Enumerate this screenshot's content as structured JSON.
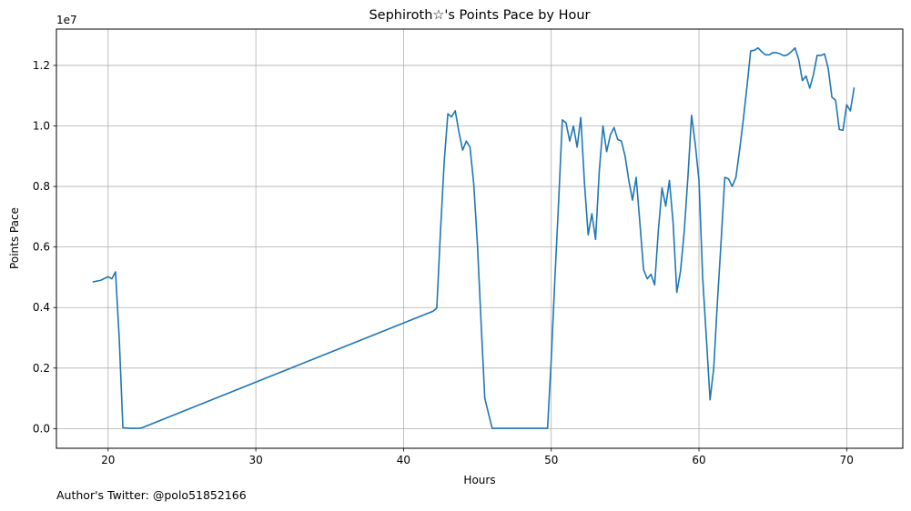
{
  "chart_data": {
    "type": "line",
    "title": "Sephiroth☆'s Points Pace by Hour",
    "xlabel": "Hours",
    "ylabel": "Points Pace",
    "y_offset_label": "1e7",
    "xlim": [
      16.5,
      73.8
    ],
    "ylim": [
      -650000,
      13200000
    ],
    "x_ticks": [
      20,
      30,
      40,
      50,
      60,
      70
    ],
    "x_tick_labels": [
      "20",
      "30",
      "40",
      "50",
      "60",
      "70"
    ],
    "y_ticks": [
      0,
      2000000,
      4000000,
      6000000,
      8000000,
      10000000,
      12000000
    ],
    "y_tick_labels": [
      "0.0",
      "0.2",
      "0.4",
      "0.6",
      "0.8",
      "1.0",
      "1.2"
    ],
    "grid": true,
    "series": [
      {
        "color": "#1f77b4",
        "x": [
          19,
          19.5,
          20,
          20.25,
          20.5,
          20.75,
          21,
          21.5,
          22,
          22.25,
          42,
          42.25,
          42.5,
          42.75,
          43,
          43.25,
          43.5,
          43.75,
          44,
          44.25,
          44.5,
          44.75,
          45,
          45.25,
          45.5,
          46,
          47,
          48,
          49,
          49.75,
          50,
          50.25,
          50.5,
          50.75,
          51,
          51.25,
          51.5,
          51.75,
          52,
          52.25,
          52.5,
          52.75,
          53,
          53.25,
          53.5,
          53.75,
          54,
          54.25,
          54.5,
          54.75,
          55,
          55.25,
          55.5,
          55.75,
          56,
          56.25,
          56.5,
          56.75,
          57,
          57.25,
          57.5,
          57.75,
          58,
          58.25,
          58.5,
          58.75,
          59,
          59.25,
          59.5,
          59.75,
          60,
          60.25,
          60.5,
          60.75,
          61,
          61.25,
          61.5,
          61.75,
          62,
          62.25,
          62.5,
          62.75,
          63,
          63.25,
          63.5,
          63.75,
          64,
          64.25,
          64.5,
          64.75,
          65,
          65.25,
          65.5,
          65.75,
          66,
          66.25,
          66.5,
          66.75,
          67,
          67.25,
          67.5,
          67.75,
          68,
          68.25,
          68.5,
          68.75,
          69,
          69.25,
          69.5,
          69.75,
          70,
          70.25,
          70.5
        ],
        "y": [
          4850000,
          4900000,
          5020000,
          4950000,
          5180000,
          3000000,
          30000,
          10000,
          10000,
          20000,
          3880000,
          3980000,
          6500000,
          8800000,
          10400000,
          10300000,
          10500000,
          9800000,
          9200000,
          9500000,
          9300000,
          8100000,
          6100000,
          3500000,
          1000000,
          10000,
          10000,
          10000,
          10000,
          10000,
          2300000,
          5000000,
          7500000,
          10200000,
          10100000,
          9500000,
          10000000,
          9300000,
          10280000,
          8100000,
          6400000,
          7100000,
          6250000,
          8500000,
          10000000,
          9150000,
          9700000,
          9950000,
          9550000,
          9500000,
          9000000,
          8200000,
          7550000,
          8300000,
          6800000,
          5250000,
          4950000,
          5100000,
          4750000,
          6550000,
          7950000,
          7350000,
          8200000,
          6800000,
          4500000,
          5200000,
          6500000,
          8300000,
          10350000,
          9400000,
          8200000,
          5000000,
          3000000,
          950000,
          2000000,
          4200000,
          6200000,
          8300000,
          8250000,
          8000000,
          8300000,
          9200000,
          10200000,
          11300000,
          12480000,
          12500000,
          12580000,
          12450000,
          12350000,
          12350000,
          12420000,
          12420000,
          12380000,
          12320000,
          12350000,
          12450000,
          12580000,
          12200000,
          11500000,
          11650000,
          11250000,
          11700000,
          12330000,
          12330000,
          12380000,
          11900000,
          10950000,
          10850000,
          9880000,
          9860000,
          10700000,
          10500000,
          11250000
        ]
      }
    ]
  },
  "footnote": "Author's Twitter: @polo51852166"
}
